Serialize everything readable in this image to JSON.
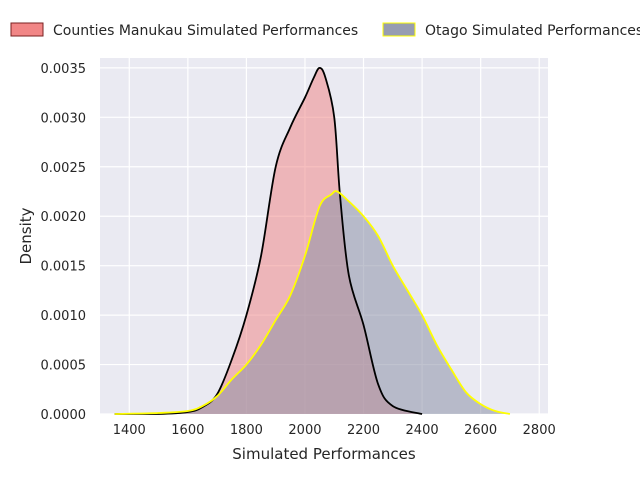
{
  "chart_data": {
    "type": "area",
    "xlabel": "Simulated Performances",
    "ylabel": "Density",
    "xlim": [
      1300,
      2830
    ],
    "ylim": [
      0,
      0.0036
    ],
    "xticks": [
      1400,
      1600,
      1800,
      2000,
      2200,
      2400,
      2600,
      2800
    ],
    "yticks": [
      0.0,
      0.0005,
      0.001,
      0.0015,
      0.002,
      0.0025,
      0.003,
      0.0035
    ],
    "xtick_labels": [
      "1400",
      "1600",
      "1800",
      "2000",
      "2200",
      "2400",
      "2600",
      "2800"
    ],
    "ytick_labels": [
      "0.0000",
      "0.0005",
      "0.0010",
      "0.0015",
      "0.0020",
      "0.0025",
      "0.0030",
      "0.0035"
    ],
    "grid": true,
    "legend_position": "top",
    "series": [
      {
        "name": "Counties Manukau Simulated Performances",
        "fill": "#f08080",
        "stroke": "#000000",
        "x": [
          1350,
          1500,
          1600,
          1650,
          1700,
          1750,
          1800,
          1850,
          1900,
          1950,
          2000,
          2030,
          2050,
          2070,
          2100,
          2120,
          2150,
          2200,
          2250,
          2300,
          2400
        ],
        "y": [
          0.0,
          0.0,
          2e-05,
          7e-05,
          0.0002,
          0.00055,
          0.001,
          0.0016,
          0.0025,
          0.0029,
          0.0032,
          0.0034,
          0.0035,
          0.0034,
          0.003,
          0.0022,
          0.0014,
          0.0009,
          0.0003,
          8e-05,
          0.0
        ]
      },
      {
        "name": "Otago Simulated Performances",
        "fill": "#8c92a8",
        "stroke": "#ffff00",
        "x": [
          1350,
          1500,
          1600,
          1650,
          1700,
          1750,
          1800,
          1850,
          1900,
          1950,
          2000,
          2050,
          2090,
          2110,
          2150,
          2200,
          2250,
          2300,
          2350,
          2400,
          2450,
          2500,
          2550,
          2600,
          2650,
          2700
        ],
        "y": [
          0.0,
          1e-05,
          3e-05,
          8e-05,
          0.00018,
          0.00035,
          0.0005,
          0.0007,
          0.00095,
          0.0012,
          0.0016,
          0.0021,
          0.00222,
          0.00225,
          0.00215,
          0.002,
          0.0018,
          0.0015,
          0.00125,
          0.001,
          0.0007,
          0.00045,
          0.00022,
          0.0001,
          3e-05,
          0.0
        ]
      }
    ]
  }
}
